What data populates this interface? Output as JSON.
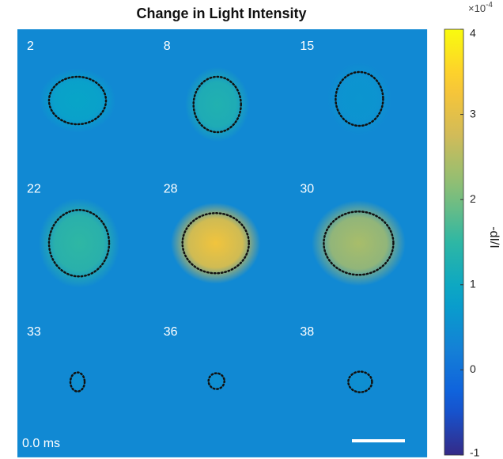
{
  "chart_data": {
    "type": "heatmap",
    "title": "Change in Light Intensity",
    "panels": [
      {
        "label": "2",
        "value": 0.9
      },
      {
        "label": "8",
        "value": 1.3
      },
      {
        "label": "15",
        "value": 0.6
      },
      {
        "label": "22",
        "value": 1.5
      },
      {
        "label": "28",
        "value": 3.2
      },
      {
        "label": "30",
        "value": 2.4
      },
      {
        "label": "33",
        "value": 0.5
      },
      {
        "label": "36",
        "value": 0.5
      },
      {
        "label": "38",
        "value": 0.5
      }
    ],
    "background": 0.4,
    "time_label": "0.0 ms",
    "clim": [
      -1,
      4
    ],
    "colorbar_ticks": [
      -1,
      0,
      1,
      2,
      3,
      4
    ],
    "colorbar_label": "-dI/I",
    "colorbar_multiplier": {
      "base": "×10",
      "exponent": "-4"
    },
    "colormap": "parula"
  }
}
